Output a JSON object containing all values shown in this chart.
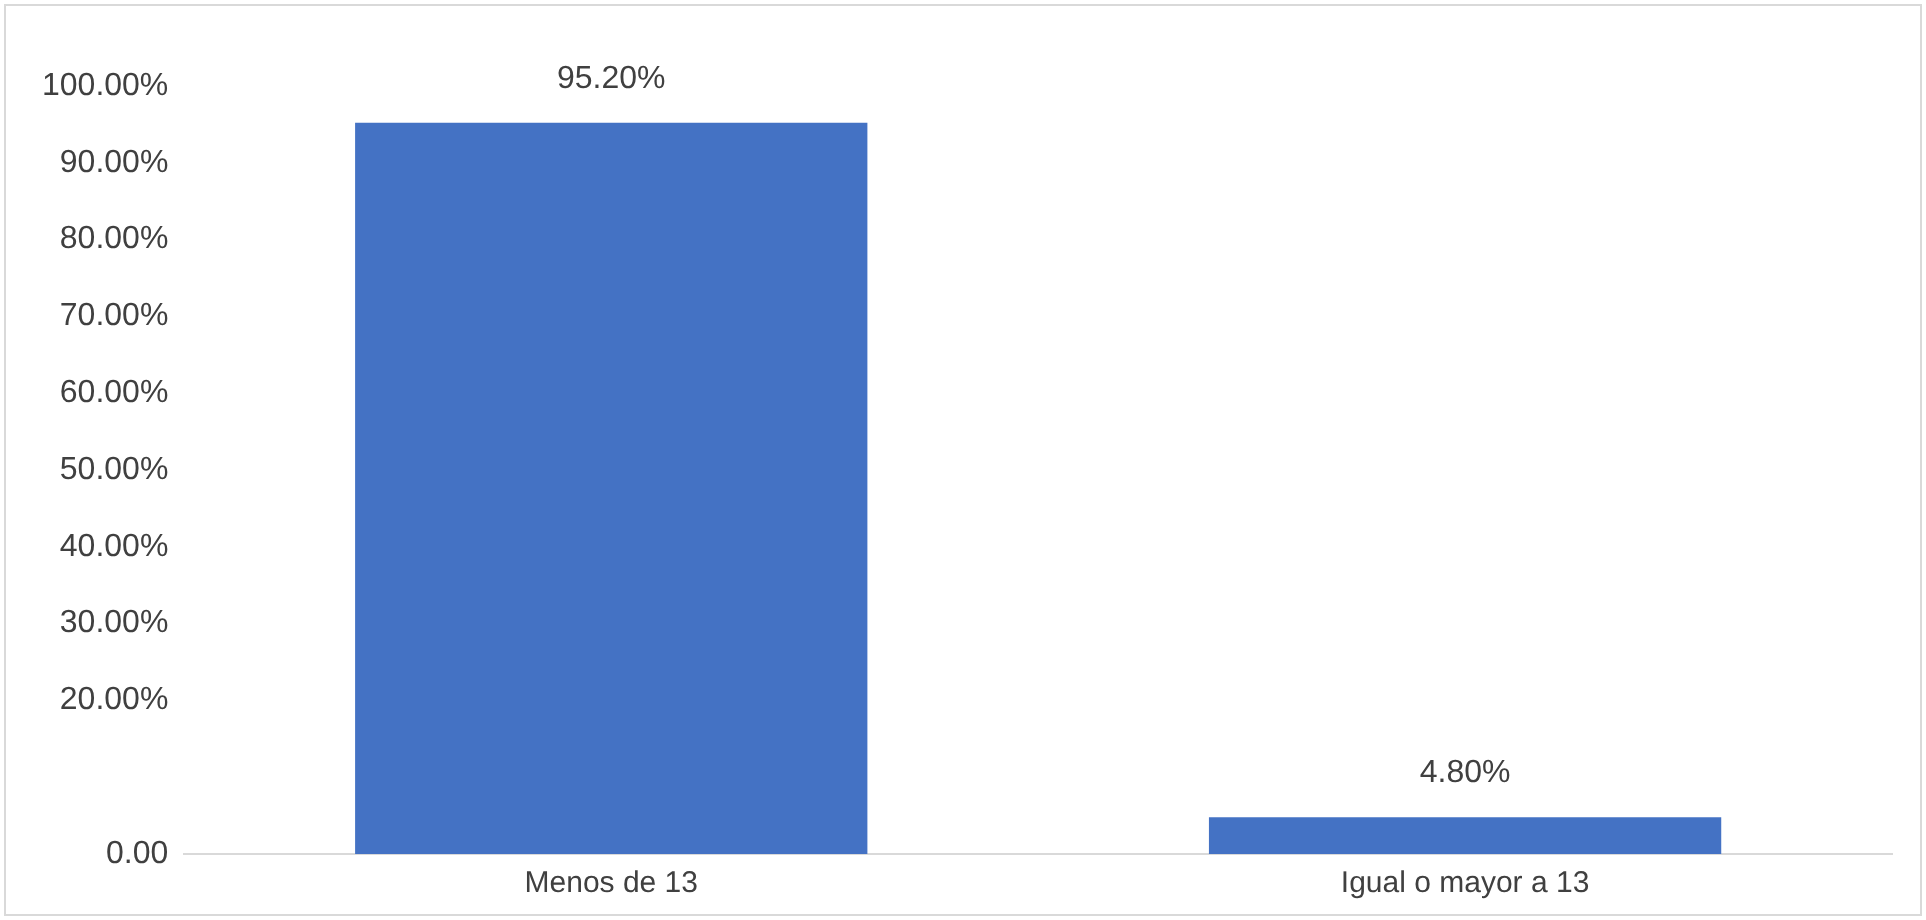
{
  "chart_data": {
    "type": "bar",
    "categories": [
      "Menos de 13",
      "Igual o mayor a 13"
    ],
    "values": [
      95.2,
      4.8
    ],
    "color": "#4472c4",
    "value_labels": [
      "95.20%",
      "4.80%"
    ],
    "ylim": [
      0,
      100
    ],
    "yticks": [
      {
        "value": 0,
        "label": "0.00"
      },
      {
        "value": 20,
        "label": "20.00%"
      },
      {
        "value": 30,
        "label": "30.00%"
      },
      {
        "value": 40,
        "label": "40.00%"
      },
      {
        "value": 50,
        "label": "50.00%"
      },
      {
        "value": 60,
        "label": "60.00%"
      },
      {
        "value": 70,
        "label": "70.00%"
      },
      {
        "value": 80,
        "label": "80.00%"
      },
      {
        "value": 90,
        "label": "90.00%"
      },
      {
        "value": 100,
        "label": "100.00%"
      }
    ],
    "grid": false,
    "legend": false
  }
}
